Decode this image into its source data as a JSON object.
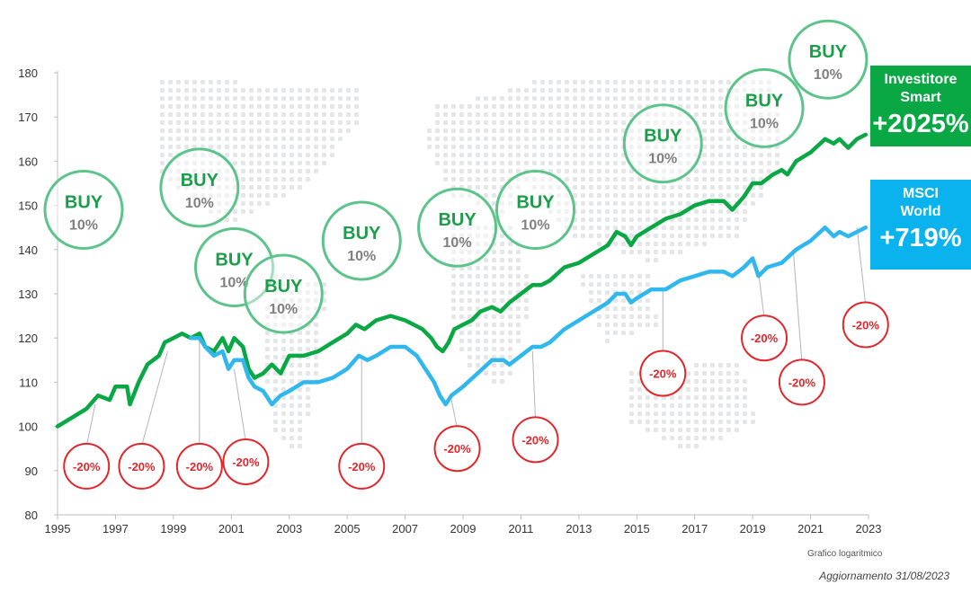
{
  "chart_data": {
    "type": "line",
    "title": "",
    "xlabel": "",
    "ylabel": "",
    "ylim": [
      80,
      180
    ],
    "xlim": [
      1995,
      2023
    ],
    "y_ticks": [
      80,
      90,
      100,
      110,
      120,
      130,
      140,
      150,
      160,
      170,
      180
    ],
    "x_ticks": [
      1995,
      1997,
      1999,
      2001,
      2003,
      2005,
      2007,
      2009,
      2011,
      2013,
      2015,
      2017,
      2019,
      2021,
      2023
    ],
    "grid": false,
    "series": [
      {
        "name": "Investitore Smart",
        "color": "#0aa845",
        "points": [
          [
            1995.0,
            100
          ],
          [
            1995.5,
            102
          ],
          [
            1996.0,
            104
          ],
          [
            1996.4,
            107
          ],
          [
            1996.8,
            106
          ],
          [
            1997.0,
            109
          ],
          [
            1997.4,
            109
          ],
          [
            1997.5,
            105
          ],
          [
            1997.8,
            110
          ],
          [
            1998.1,
            114
          ],
          [
            1998.5,
            116
          ],
          [
            1998.7,
            119
          ],
          [
            1999.0,
            120
          ],
          [
            1999.3,
            121
          ],
          [
            1999.6,
            120
          ],
          [
            1999.9,
            121
          ],
          [
            2000.1,
            118
          ],
          [
            2000.4,
            117
          ],
          [
            2000.7,
            120
          ],
          [
            2000.9,
            117
          ],
          [
            2001.1,
            120
          ],
          [
            2001.4,
            118
          ],
          [
            2001.6,
            113
          ],
          [
            2001.8,
            111
          ],
          [
            2002.1,
            112
          ],
          [
            2002.4,
            114
          ],
          [
            2002.7,
            112
          ],
          [
            2003.0,
            116
          ],
          [
            2003.5,
            116
          ],
          [
            2004.0,
            117
          ],
          [
            2004.5,
            119
          ],
          [
            2005.0,
            121
          ],
          [
            2005.3,
            123
          ],
          [
            2005.6,
            122
          ],
          [
            2006.0,
            124
          ],
          [
            2006.5,
            125
          ],
          [
            2007.0,
            124
          ],
          [
            2007.3,
            123
          ],
          [
            2007.6,
            122
          ],
          [
            2007.9,
            120
          ],
          [
            2008.1,
            118
          ],
          [
            2008.3,
            117
          ],
          [
            2008.5,
            119
          ],
          [
            2008.7,
            122
          ],
          [
            2009.0,
            123
          ],
          [
            2009.3,
            124
          ],
          [
            2009.6,
            126
          ],
          [
            2010.0,
            127
          ],
          [
            2010.3,
            126
          ],
          [
            2010.6,
            128
          ],
          [
            2011.0,
            130
          ],
          [
            2011.4,
            132
          ],
          [
            2011.7,
            132
          ],
          [
            2012.0,
            133
          ],
          [
            2012.5,
            136
          ],
          [
            2013.0,
            137
          ],
          [
            2013.5,
            139
          ],
          [
            2014.0,
            141
          ],
          [
            2014.3,
            144
          ],
          [
            2014.6,
            143
          ],
          [
            2014.8,
            141
          ],
          [
            2015.0,
            143
          ],
          [
            2015.5,
            145
          ],
          [
            2016.0,
            147
          ],
          [
            2016.5,
            148
          ],
          [
            2017.0,
            150
          ],
          [
            2017.5,
            151
          ],
          [
            2018.0,
            151
          ],
          [
            2018.3,
            149
          ],
          [
            2018.7,
            152
          ],
          [
            2019.0,
            155
          ],
          [
            2019.3,
            155
          ],
          [
            2019.7,
            157
          ],
          [
            2020.0,
            158
          ],
          [
            2020.2,
            157
          ],
          [
            2020.5,
            160
          ],
          [
            2021.0,
            162
          ],
          [
            2021.5,
            165
          ],
          [
            2021.8,
            164
          ],
          [
            2022.0,
            165
          ],
          [
            2022.3,
            163
          ],
          [
            2022.6,
            165
          ],
          [
            2022.9,
            166
          ]
        ]
      },
      {
        "name": "MSCI World",
        "color": "#30b8ee",
        "points": [
          [
            1999.6,
            120
          ],
          [
            1999.9,
            120
          ],
          [
            2000.1,
            118
          ],
          [
            2000.4,
            116
          ],
          [
            2000.7,
            117
          ],
          [
            2000.9,
            113
          ],
          [
            2001.1,
            115
          ],
          [
            2001.4,
            115
          ],
          [
            2001.6,
            111
          ],
          [
            2001.8,
            109
          ],
          [
            2002.1,
            108
          ],
          [
            2002.4,
            105
          ],
          [
            2002.7,
            107
          ],
          [
            2003.0,
            108
          ],
          [
            2003.5,
            110
          ],
          [
            2004.0,
            110
          ],
          [
            2004.5,
            111
          ],
          [
            2005.0,
            113
          ],
          [
            2005.4,
            116
          ],
          [
            2005.7,
            115
          ],
          [
            2006.0,
            116
          ],
          [
            2006.5,
            118
          ],
          [
            2007.0,
            118
          ],
          [
            2007.4,
            116
          ],
          [
            2007.7,
            113
          ],
          [
            2008.0,
            110
          ],
          [
            2008.2,
            107
          ],
          [
            2008.4,
            105
          ],
          [
            2008.6,
            107
          ],
          [
            2009.0,
            109
          ],
          [
            2009.5,
            112
          ],
          [
            2010.0,
            115
          ],
          [
            2010.4,
            115
          ],
          [
            2010.6,
            114
          ],
          [
            2011.0,
            116
          ],
          [
            2011.4,
            118
          ],
          [
            2011.7,
            118
          ],
          [
            2012.0,
            119
          ],
          [
            2012.5,
            122
          ],
          [
            2013.0,
            124
          ],
          [
            2013.5,
            126
          ],
          [
            2014.0,
            128
          ],
          [
            2014.3,
            130
          ],
          [
            2014.6,
            130
          ],
          [
            2014.8,
            128
          ],
          [
            2015.0,
            129
          ],
          [
            2015.5,
            131
          ],
          [
            2016.0,
            131
          ],
          [
            2016.5,
            133
          ],
          [
            2017.0,
            134
          ],
          [
            2017.5,
            135
          ],
          [
            2018.0,
            135
          ],
          [
            2018.3,
            134
          ],
          [
            2018.7,
            136
          ],
          [
            2019.0,
            138
          ],
          [
            2019.2,
            134
          ],
          [
            2019.5,
            136
          ],
          [
            2020.0,
            137
          ],
          [
            2020.5,
            140
          ],
          [
            2021.0,
            142
          ],
          [
            2021.5,
            145
          ],
          [
            2021.8,
            143
          ],
          [
            2022.0,
            144
          ],
          [
            2022.3,
            143
          ],
          [
            2022.6,
            144
          ],
          [
            2022.9,
            145
          ]
        ]
      }
    ],
    "annotations": {
      "buy": [
        {
          "label": "BUY",
          "sub": "10%",
          "x": 1995.9,
          "y": 149
        },
        {
          "label": "BUY",
          "sub": "10%",
          "x": 1999.9,
          "y": 154
        },
        {
          "label": "BUY",
          "sub": "10%",
          "x": 2001.1,
          "y": 136
        },
        {
          "label": "BUY",
          "sub": "10%",
          "x": 2002.8,
          "y": 130
        },
        {
          "label": "BUY",
          "sub": "10%",
          "x": 2005.5,
          "y": 142
        },
        {
          "label": "BUY",
          "sub": "10%",
          "x": 2008.8,
          "y": 145
        },
        {
          "label": "BUY",
          "sub": "10%",
          "x": 2011.5,
          "y": 149
        },
        {
          "label": "BUY",
          "sub": "10%",
          "x": 2015.9,
          "y": 164
        },
        {
          "label": "BUY",
          "sub": "10%",
          "x": 2019.4,
          "y": 172
        },
        {
          "label": "BUY",
          "sub": "10%",
          "x": 2021.6,
          "y": 183
        }
      ],
      "drops": [
        {
          "label": "-20%",
          "x": 1996.0,
          "y": 91,
          "from": [
            1996.3,
            105
          ]
        },
        {
          "label": "-20%",
          "x": 1997.9,
          "y": 91,
          "from": [
            1998.8,
            117
          ]
        },
        {
          "label": "-20%",
          "x": 1999.9,
          "y": 91,
          "from": [
            1999.9,
            120
          ]
        },
        {
          "label": "-20%",
          "x": 2001.5,
          "y": 92,
          "from": [
            2001.1,
            113
          ]
        },
        {
          "label": "-20%",
          "x": 2005.5,
          "y": 91,
          "from": [
            2005.5,
            115
          ]
        },
        {
          "label": "-20%",
          "x": 2008.8,
          "y": 95,
          "from": [
            2008.6,
            106
          ]
        },
        {
          "label": "-20%",
          "x": 2011.5,
          "y": 97,
          "from": [
            2011.4,
            117
          ]
        },
        {
          "label": "-20%",
          "x": 2015.9,
          "y": 112,
          "from": [
            2015.9,
            131
          ]
        },
        {
          "label": "-20%",
          "x": 2019.4,
          "y": 120,
          "from": [
            2019.2,
            135
          ]
        },
        {
          "label": "-20%",
          "x": 2020.7,
          "y": 110,
          "from": [
            2020.4,
            140
          ]
        },
        {
          "label": "-20%",
          "x": 2022.9,
          "y": 123,
          "from": [
            2022.6,
            145
          ]
        }
      ]
    }
  },
  "panels": {
    "smart": {
      "name_line1": "Investitore",
      "name_line2": "Smart",
      "performance": "+2025%",
      "color": "#0aa845"
    },
    "msci": {
      "name_line1": "MSCI",
      "name_line2": "World",
      "performance": "+719%",
      "color": "#0ab3ee"
    }
  },
  "notes": {
    "scale": "Grafico logaritmico",
    "updated": "Aggiornamento 31/08/2023"
  }
}
